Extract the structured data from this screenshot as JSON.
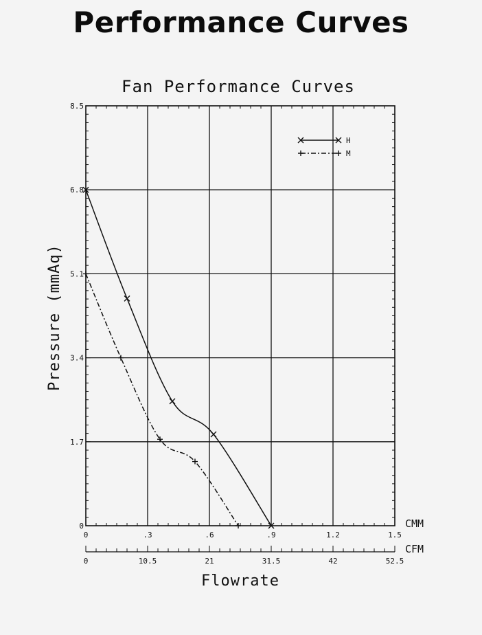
{
  "page": {
    "heading": "Performance Curves"
  },
  "chart_data": {
    "type": "line",
    "title": "Fan Performance Curves",
    "xlabel": "Flowrate",
    "ylabel": "Pressure   (mmAq)",
    "x_unit_primary": "CMM",
    "x_unit_secondary": "CFM",
    "xlim": [
      0,
      1.5
    ],
    "ylim": [
      0,
      8.5
    ],
    "x_ticks": [
      0,
      0.3,
      0.6,
      0.9,
      1.2,
      1.5
    ],
    "x_tick_labels": [
      "0",
      ".3",
      ".6",
      ".9",
      "1.2",
      "1.5"
    ],
    "x2_tick_labels": [
      "0",
      "10.5",
      "21",
      "31.5",
      "42",
      "52.5"
    ],
    "y_ticks": [
      0,
      1.7,
      3.4,
      5.1,
      6.8,
      8.5
    ],
    "y_tick_labels": [
      "0",
      "1.7",
      "3.4",
      "5.1",
      "6.8",
      "8.5"
    ],
    "grid": true,
    "legend_position": "top-right",
    "series": [
      {
        "name": "H",
        "marker": "x",
        "line": "solid",
        "points": [
          [
            0,
            6.8
          ],
          [
            0.2,
            4.6
          ],
          [
            0.42,
            2.52
          ],
          [
            0.62,
            1.85
          ],
          [
            0.9,
            0
          ]
        ]
      },
      {
        "name": "M",
        "marker": "+",
        "line": "dashdot",
        "points": [
          [
            0,
            5.1
          ],
          [
            0.17,
            3.4
          ],
          [
            0.36,
            1.75
          ],
          [
            0.53,
            1.3
          ],
          [
            0.74,
            0
          ]
        ]
      }
    ]
  }
}
